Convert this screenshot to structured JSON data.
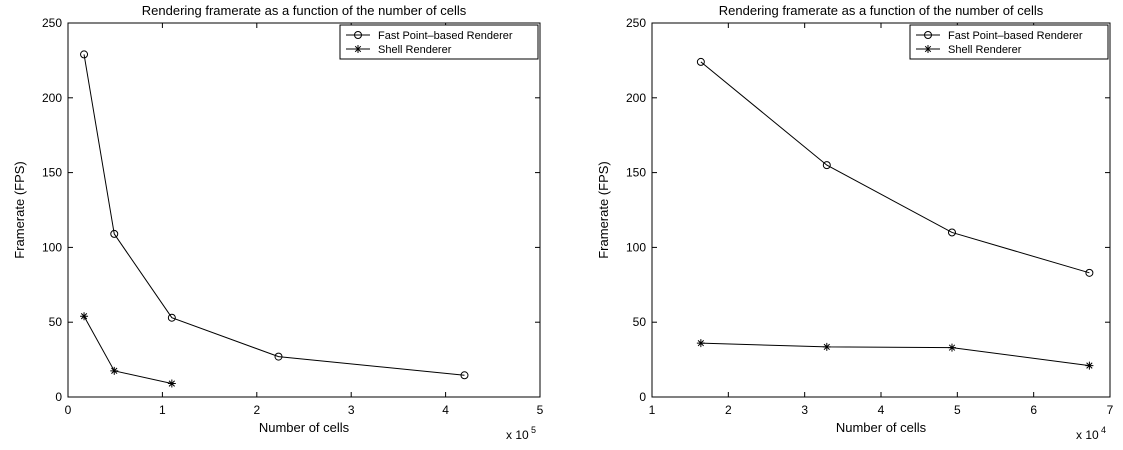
{
  "chart_data": [
    {
      "type": "line",
      "title": "Rendering framerate as a function of the number of cells",
      "xlabel": "Number of cells",
      "ylabel": "Framerate (FPS)",
      "x_multiplier": {
        "base": "x 10",
        "exponent": "5"
      },
      "xlim": [
        0,
        5
      ],
      "ylim": [
        0,
        250
      ],
      "xticks": [
        0,
        1,
        2,
        3,
        4,
        5
      ],
      "yticks": [
        0,
        50,
        100,
        150,
        200,
        250
      ],
      "grid": false,
      "legend_position": "top-right",
      "series": [
        {
          "name": "Fast Point–based Renderer",
          "marker": "circle",
          "x": [
            0.17,
            0.49,
            1.1,
            2.23,
            4.2
          ],
          "y": [
            229,
            109,
            53,
            27,
            14.5
          ]
        },
        {
          "name": "Shell Renderer",
          "marker": "star",
          "x": [
            0.17,
            0.49,
            1.1
          ],
          "y": [
            54,
            17.5,
            9
          ]
        }
      ]
    },
    {
      "type": "line",
      "title": "Rendering framerate as a function of the number of cells",
      "xlabel": "Number of cells",
      "ylabel": "Framerate (FPS)",
      "x_multiplier": {
        "base": "x 10",
        "exponent": "4"
      },
      "xlim": [
        1,
        7
      ],
      "ylim": [
        0,
        250
      ],
      "xticks": [
        1,
        2,
        3,
        4,
        5,
        6,
        7
      ],
      "yticks": [
        0,
        50,
        100,
        150,
        200,
        250
      ],
      "grid": false,
      "legend_position": "top-right",
      "series": [
        {
          "name": "Fast Point–based Renderer",
          "marker": "circle",
          "x": [
            1.64,
            3.29,
            4.93,
            6.73
          ],
          "y": [
            224,
            155,
            110,
            83
          ]
        },
        {
          "name": "Shell Renderer",
          "marker": "star",
          "x": [
            1.64,
            3.29,
            4.93,
            6.73
          ],
          "y": [
            36,
            33.5,
            33,
            21
          ]
        }
      ]
    }
  ]
}
